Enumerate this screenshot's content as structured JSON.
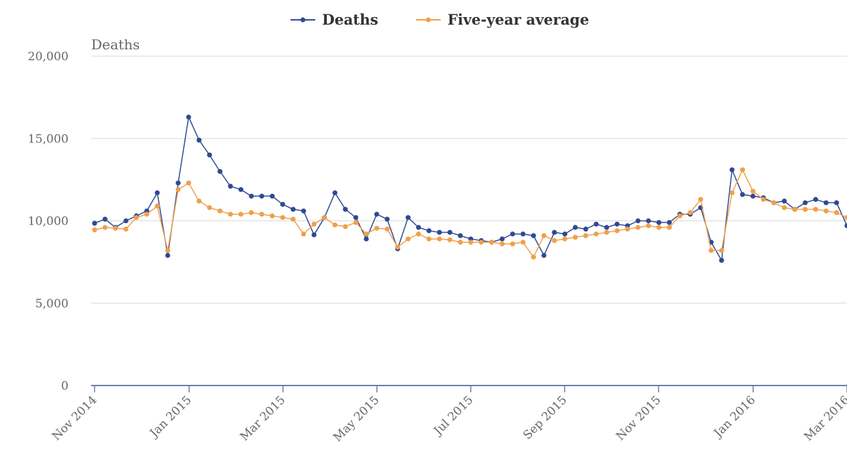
{
  "chart_data": {
    "type": "line",
    "y_label": "Deaths",
    "x": [
      0,
      1,
      2,
      3,
      4,
      5,
      6,
      7,
      8,
      9,
      10,
      11,
      12,
      13,
      14,
      15,
      16,
      17,
      18,
      19,
      20,
      21,
      22,
      23,
      24,
      25,
      26,
      27,
      28,
      29,
      30,
      31,
      32,
      33,
      34,
      35,
      36,
      37,
      38,
      39,
      40,
      41,
      42,
      43,
      44,
      45,
      46,
      47,
      48,
      49,
      50,
      51,
      52,
      53,
      54,
      55,
      56,
      57,
      58,
      59,
      60,
      61,
      62,
      63,
      64,
      65,
      66,
      67,
      68,
      69,
      70,
      71,
      72
    ],
    "series": [
      {
        "name": "Deaths",
        "color": "#2e4a94",
        "values": [
          9850,
          10100,
          9600,
          10000,
          10300,
          10600,
          11700,
          7900,
          12300,
          16300,
          14900,
          14000,
          13000,
          12100,
          11900,
          11500,
          11500,
          11500,
          11000,
          10700,
          10600,
          9150,
          10200,
          11700,
          10700,
          10200,
          8900,
          10400,
          10100,
          8300,
          10200,
          9600,
          9400,
          9300,
          9300,
          9100,
          8900,
          8800,
          8700,
          8900,
          9200,
          9200,
          9100,
          7900,
          9300,
          9200,
          9600,
          9500,
          9800,
          9600,
          9800,
          9700,
          10000,
          10000,
          9900,
          9900,
          10400,
          10400,
          10800,
          8700,
          7600,
          13100,
          11600,
          11500,
          11400,
          11100,
          11200,
          10700,
          11100,
          11300,
          11100,
          11100,
          9700
        ]
      },
      {
        "name": "Five-year average",
        "color": "#f0a04b",
        "values": [
          9450,
          9600,
          9550,
          9500,
          10200,
          10400,
          10900,
          8200,
          11900,
          12300,
          11200,
          10800,
          10600,
          10400,
          10400,
          10500,
          10400,
          10300,
          10200,
          10100,
          9200,
          9800,
          10200,
          9750,
          9650,
          9900,
          9200,
          9550,
          9500,
          8400,
          8900,
          9200,
          8900,
          8900,
          8850,
          8700,
          8700,
          8700,
          8700,
          8600,
          8600,
          8700,
          7800,
          9100,
          8800,
          8900,
          9000,
          9100,
          9200,
          9300,
          9400,
          9500,
          9600,
          9700,
          9600,
          9600,
          10300,
          10500,
          11300,
          8200,
          8200,
          11700,
          13100,
          11800,
          11300,
          11100,
          10800,
          10700,
          10700,
          10700,
          10600,
          10500,
          10200
        ]
      }
    ],
    "xlim": [
      0,
      72
    ],
    "xticks": [
      {
        "value": 0,
        "label": "Nov 2014"
      },
      {
        "value": 9.05,
        "label": "Jan 2015"
      },
      {
        "value": 18.03,
        "label": "Mar 2015"
      },
      {
        "value": 27.02,
        "label": "May 2015"
      },
      {
        "value": 36,
        "label": "Jul 2015"
      },
      {
        "value": 44.98,
        "label": "Sep 2015"
      },
      {
        "value": 53.97,
        "label": "Nov 2015"
      },
      {
        "value": 63.02,
        "label": "Jan 2016"
      },
      {
        "value": 72,
        "label": "Mar 2016"
      }
    ],
    "ylim": [
      0,
      20000
    ],
    "yticks": [
      0,
      {
        "value": 5000,
        "label": "5,000"
      },
      {
        "value": 10000,
        "label": "10,000"
      },
      {
        "value": 15000,
        "label": "15,000"
      },
      {
        "value": 20000,
        "label": "20,000"
      }
    ],
    "grid": true,
    "legend": "top"
  }
}
